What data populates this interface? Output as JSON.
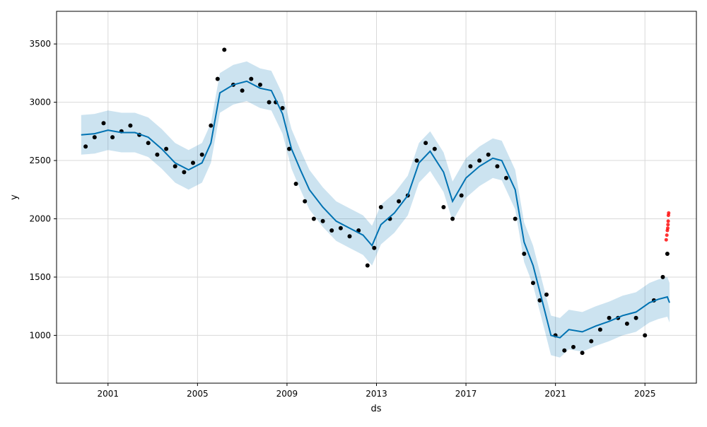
{
  "chart_data": {
    "type": "scatter",
    "title": "",
    "xlabel": "ds",
    "ylabel": "y",
    "xlim": [
      1998.7,
      2027.3
    ],
    "ylim": [
      590,
      3780
    ],
    "x_ticks": [
      2001,
      2005,
      2009,
      2013,
      2017,
      2021,
      2025
    ],
    "x_tick_labels": [
      "2001",
      "2005",
      "2009",
      "2013",
      "2017",
      "2021",
      "2025"
    ],
    "y_ticks": [
      1000,
      1500,
      2000,
      2500,
      3000,
      3500
    ],
    "y_tick_labels": [
      "1000",
      "1500",
      "2000",
      "2500",
      "3000",
      "3500"
    ],
    "grid": true,
    "legend": "none",
    "colors": {
      "observed": "#000000",
      "forecast_line": "#0072B2",
      "uncertainty_band": "#0072B2",
      "recent_points": "#ff0000"
    },
    "series": [
      {
        "role": "observed",
        "x": [
          2000.0,
          2000.4,
          2000.8,
          2001.2,
          2001.6,
          2002.0,
          2002.4,
          2002.8,
          2003.2,
          2003.6,
          2004.0,
          2004.4,
          2004.8,
          2005.2,
          2005.6,
          2005.9,
          2006.2,
          2006.6,
          2007.0,
          2007.4,
          2007.8,
          2008.2,
          2008.5,
          2008.8,
          2009.1,
          2009.4,
          2009.8,
          2010.2,
          2010.6,
          2011.0,
          2011.4,
          2011.8,
          2012.2,
          2012.6,
          2012.9,
          2013.2,
          2013.6,
          2014.0,
          2014.4,
          2014.8,
          2015.2,
          2015.6,
          2016.0,
          2016.4,
          2016.8,
          2017.2,
          2017.6,
          2018.0,
          2018.4,
          2018.8,
          2019.2,
          2019.6,
          2020.0,
          2020.3,
          2020.6,
          2021.0,
          2021.4,
          2021.8,
          2022.2,
          2022.6,
          2023.0,
          2023.4,
          2023.8,
          2024.2,
          2024.6,
          2025.0,
          2025.4,
          2025.8,
          2026.0
        ],
        "y": [
          2620,
          2700,
          2820,
          2700,
          2750,
          2800,
          2720,
          2650,
          2550,
          2600,
          2450,
          2400,
          2480,
          2550,
          2800,
          3200,
          3450,
          3150,
          3100,
          3200,
          3150,
          3000,
          3000,
          2950,
          2600,
          2300,
          2150,
          2000,
          1980,
          1900,
          1920,
          1850,
          1900,
          1600,
          1750,
          2100,
          2000,
          2150,
          2200,
          2500,
          2650,
          2600,
          2100,
          2000,
          2200,
          2450,
          2500,
          2550,
          2450,
          2350,
          2000,
          1700,
          1450,
          1300,
          1350,
          1000,
          870,
          900,
          850,
          950,
          1050,
          1150,
          1150,
          1100,
          1150,
          1000,
          1300,
          1500,
          1700
        ]
      },
      {
        "role": "trend",
        "x": [
          1999.8,
          2000.4,
          2001.0,
          2001.6,
          2002.2,
          2002.8,
          2003.4,
          2004.0,
          2004.6,
          2005.2,
          2005.6,
          2006.0,
          2006.6,
          2007.2,
          2007.8,
          2008.3,
          2008.8,
          2009.2,
          2009.6,
          2010.0,
          2010.6,
          2011.2,
          2011.8,
          2012.4,
          2012.8,
          2013.2,
          2013.8,
          2014.4,
          2014.9,
          2015.4,
          2016.0,
          2016.4,
          2017.0,
          2017.6,
          2018.2,
          2018.6,
          2019.2,
          2019.6,
          2020.0,
          2020.4,
          2020.8,
          2021.2,
          2021.6,
          2022.2,
          2022.8,
          2023.4,
          2024.0,
          2024.6,
          2025.2,
          2025.6,
          2026.0,
          2026.1
        ],
        "y": [
          2720,
          2730,
          2760,
          2740,
          2740,
          2700,
          2600,
          2480,
          2420,
          2480,
          2650,
          3080,
          3150,
          3180,
          3120,
          3100,
          2900,
          2600,
          2420,
          2250,
          2100,
          1980,
          1920,
          1860,
          1770,
          1950,
          2050,
          2200,
          2480,
          2580,
          2400,
          2150,
          2350,
          2450,
          2520,
          2500,
          2250,
          1800,
          1600,
          1300,
          1000,
          980,
          1050,
          1030,
          1080,
          1120,
          1170,
          1200,
          1280,
          1310,
          1330,
          1280
        ]
      },
      {
        "role": "forecast_points",
        "x": [
          2025.95,
          2025.98,
          2026.0,
          2026.02,
          2026.03,
          2026.04,
          2026.05,
          2026.06
        ],
        "y": [
          1820,
          1860,
          1900,
          1920,
          1950,
          1980,
          2030,
          2050
        ]
      }
    ],
    "band_halfwidth": 170
  }
}
